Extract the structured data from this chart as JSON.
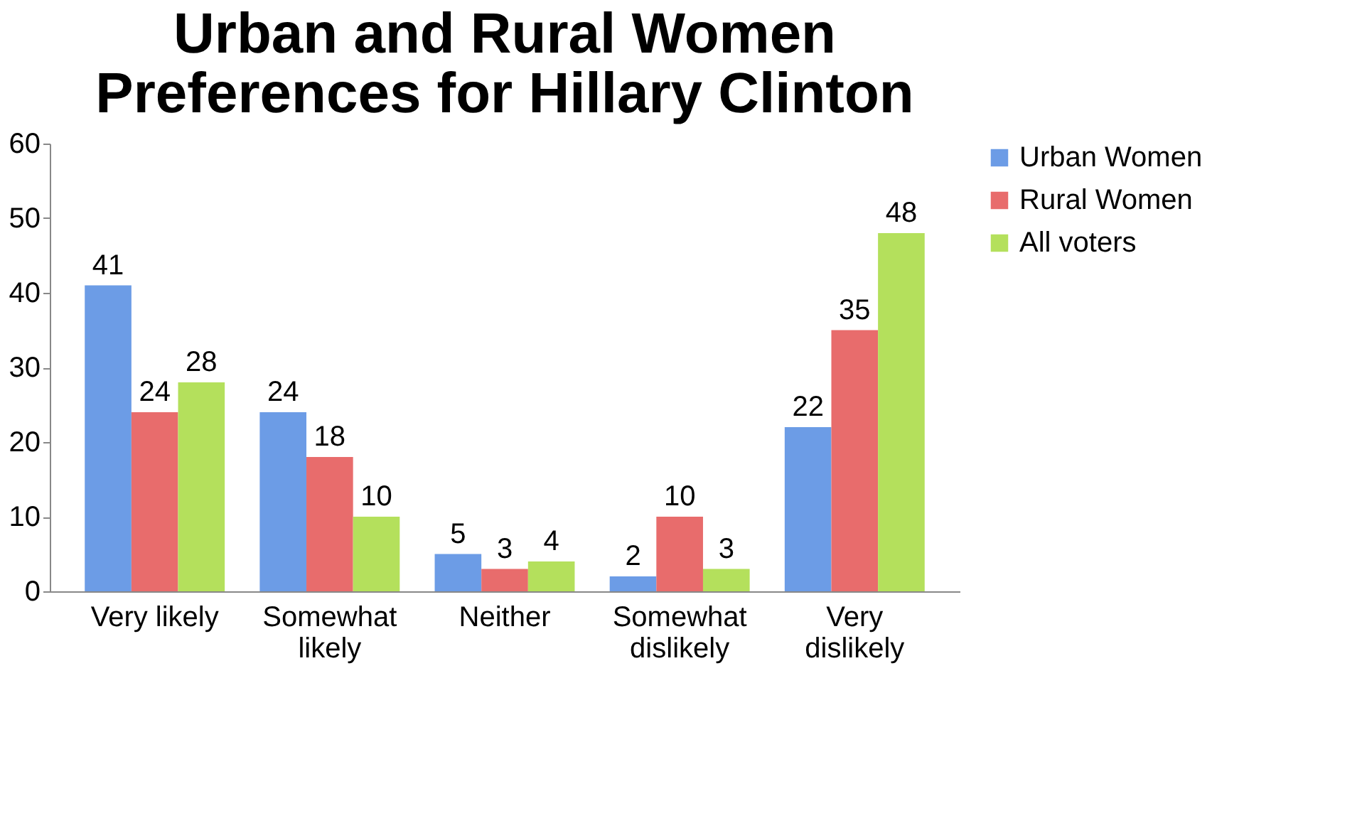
{
  "chart_data": {
    "type": "bar",
    "title": "Urban and Rural Women Preferences for Hillary Clinton",
    "categories": [
      "Very likely",
      "Somewhat likely",
      "Neither",
      "Somewhat dislikely",
      "Very dislikely"
    ],
    "series": [
      {
        "name": "Urban Women",
        "color": "#6c9ce6",
        "values": [
          41,
          24,
          5,
          2,
          22
        ]
      },
      {
        "name": "Rural Women",
        "color": "#e86c6c",
        "values": [
          24,
          18,
          3,
          10,
          35
        ]
      },
      {
        "name": "All voters",
        "color": "#b4e05c",
        "values": [
          28,
          10,
          4,
          3,
          48
        ]
      }
    ],
    "ylim": [
      0,
      60
    ],
    "yticks": [
      0,
      10,
      20,
      30,
      40,
      50,
      60
    ],
    "grid": false,
    "legend": "right",
    "data_labels": true
  }
}
